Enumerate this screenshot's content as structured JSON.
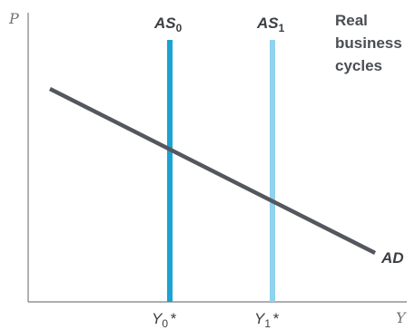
{
  "axes": {
    "y_label": "P",
    "x_label": "Y"
  },
  "title_lines": [
    "Real",
    "business",
    "cycles"
  ],
  "curves": {
    "as0": {
      "main": "AS",
      "sub": "0",
      "color": "#1aa3d4"
    },
    "as1": {
      "main": "AS",
      "sub": "1",
      "color": "#8fd3ee"
    },
    "ad": {
      "label": "AD",
      "color": "#54575d"
    }
  },
  "ticks": {
    "y0": {
      "main": "Y",
      "sub": "0",
      "suffix": "*"
    },
    "y1": {
      "main": "Y",
      "sub": "1",
      "suffix": "*"
    }
  },
  "axis_color": "#7a7e82"
}
